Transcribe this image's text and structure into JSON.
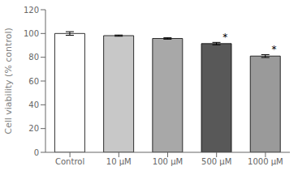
{
  "chart_data": {
    "type": "bar",
    "categories": [
      "Control",
      "10 μM",
      "100 μM",
      "500 μM",
      "1000 μM"
    ],
    "values": [
      100.0,
      98.2,
      95.8,
      91.5,
      81.0
    ],
    "errors": [
      1.5,
      0.5,
      0.6,
      1.0,
      1.2
    ],
    "colors": [
      "#ffffff",
      "#c8c8c8",
      "#a8a8a8",
      "#585858",
      "#9a9a9a"
    ],
    "ylabel": "Cell viability (% control)",
    "ylim": [
      0,
      120
    ],
    "yticks": [
      0,
      20,
      40,
      60,
      80,
      100,
      120
    ],
    "annotations": [
      null,
      null,
      null,
      "*",
      "*"
    ],
    "grid": false
  }
}
